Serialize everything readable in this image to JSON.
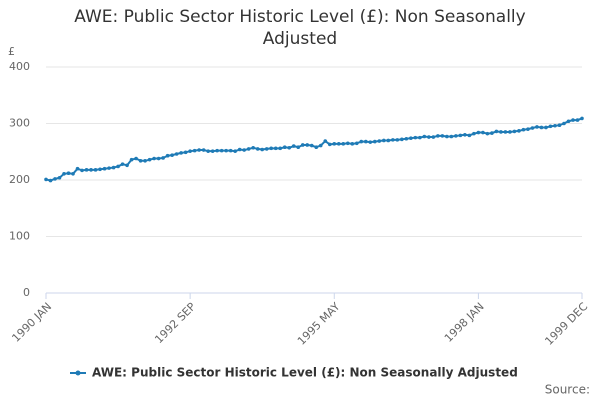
{
  "chart_data": {
    "type": "line",
    "title": "AWE: Public Sector Historic Level (£): Non Seasonally Adjusted",
    "y_label": "£",
    "source": "Source:",
    "categories": [
      "1990 JAN",
      null,
      null,
      null,
      null,
      null,
      null,
      null,
      null,
      null,
      null,
      null,
      null,
      null,
      null,
      null,
      null,
      null,
      null,
      null,
      null,
      null,
      null,
      null,
      null,
      null,
      null,
      null,
      null,
      null,
      null,
      null,
      "1992 SEP",
      null,
      null,
      null,
      null,
      null,
      null,
      null,
      null,
      null,
      null,
      null,
      null,
      null,
      null,
      null,
      null,
      null,
      null,
      null,
      null,
      null,
      null,
      null,
      null,
      null,
      null,
      null,
      null,
      null,
      null,
      null,
      "1995 MAY",
      null,
      null,
      null,
      null,
      null,
      null,
      null,
      null,
      null,
      null,
      null,
      null,
      null,
      null,
      null,
      null,
      null,
      null,
      null,
      null,
      null,
      null,
      null,
      null,
      null,
      null,
      null,
      null,
      null,
      null,
      null,
      "1998 JAN",
      null,
      null,
      null,
      null,
      null,
      null,
      null,
      null,
      null,
      null,
      null,
      null,
      null,
      null,
      null,
      null,
      null,
      null,
      null,
      null,
      null,
      null,
      "1999 DEC"
    ],
    "series": [
      {
        "name": "AWE: Public Sector Historic Level (£): Non Seasonally Adjusted",
        "color": "#1f7bb6",
        "values": [
          201,
          199,
          202,
          204,
          211,
          212,
          211,
          220,
          217,
          218,
          218,
          218,
          219,
          220,
          221,
          222,
          224,
          228,
          226,
          236,
          238,
          234,
          234,
          236,
          238,
          238,
          239,
          243,
          244,
          246,
          248,
          249,
          251,
          252,
          253,
          253,
          251,
          251,
          252,
          252,
          252,
          252,
          251,
          254,
          253,
          255,
          257,
          255,
          254,
          255,
          256,
          256,
          256,
          258,
          257,
          260,
          258,
          262,
          262,
          261,
          258,
          261,
          269,
          263,
          264,
          264,
          264,
          265,
          264,
          265,
          268,
          268,
          267,
          268,
          269,
          270,
          270,
          271,
          271,
          272,
          273,
          274,
          275,
          275,
          277,
          276,
          276,
          278,
          278,
          277,
          277,
          278,
          279,
          280,
          279,
          282,
          284,
          284,
          282,
          283,
          286,
          285,
          285,
          285,
          286,
          287,
          289,
          290,
          292,
          294,
          293,
          293,
          295,
          296,
          297,
          300,
          304,
          306,
          306,
          309
        ]
      }
    ],
    "ylim": [
      0,
      400
    ],
    "yticks": [
      0,
      100,
      200,
      300,
      400
    ],
    "grid": true
  }
}
